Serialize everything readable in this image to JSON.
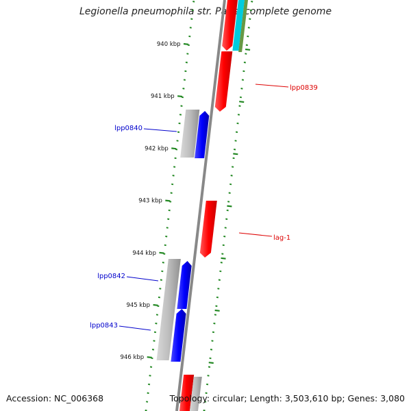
{
  "title": "Legionella pneumophila str. Paris, complete genome",
  "ruler": [
    "940 kbp",
    "941 kbp",
    "942 kbp",
    "943 kbp",
    "944 kbp",
    "945 kbp",
    "946 kbp"
  ],
  "genes": [
    {
      "name": "lpp0839",
      "strand": "forward"
    },
    {
      "name": "lpp0840",
      "strand": "reverse"
    },
    {
      "name": "lag-1",
      "strand": "forward"
    },
    {
      "name": "lpp0842",
      "strand": "reverse"
    },
    {
      "name": "lpp0843",
      "strand": "reverse"
    }
  ],
  "colors": {
    "forward_cds": "#ff0000",
    "reverse_cds": "#0000ff",
    "other_feature": "#bbbbbb",
    "ticks": "#228822",
    "backbone": "#888888",
    "feature_cyan": "#00ccdd",
    "feature_olive": "#669944"
  },
  "footer": {
    "accession": "Accession: NC_006368",
    "summary": "Topology: circular; Length: 3,503,610 bp; Genes: 3,080"
  }
}
